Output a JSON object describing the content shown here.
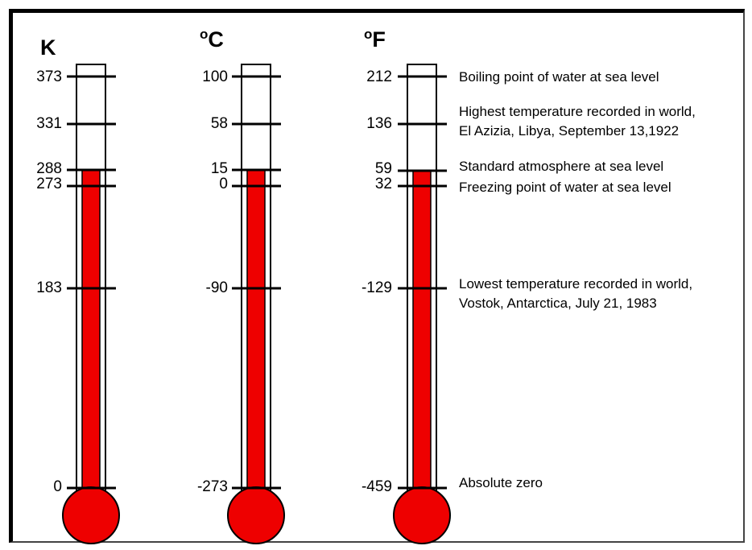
{
  "columns": [
    {
      "id": "kelvin",
      "unit_sup": "",
      "unit_main": "K",
      "ticks": [
        "373",
        "331",
        "288",
        "273",
        "183",
        "0"
      ]
    },
    {
      "id": "celsius",
      "unit_sup": "o",
      "unit_main": "C",
      "ticks": [
        "100",
        "58",
        "15",
        "0",
        "-90",
        "-273"
      ]
    },
    {
      "id": "fahrenheit",
      "unit_sup": "o",
      "unit_main": "F",
      "ticks": [
        "212",
        "136",
        "59",
        "32",
        "-129",
        "-459"
      ]
    }
  ],
  "descriptions": [
    [
      "Boiling point of water at sea level"
    ],
    [
      "Highest temperature recorded in world,",
      "El Azizia,  Libya, September 13,1922"
    ],
    [
      "Standard atmosphere at sea level"
    ],
    [
      "Freezing point of water at sea level"
    ],
    [
      "Lowest temperature recorded in world,",
      "Vostok, Antarctica, July 21, 1983"
    ],
    [
      "Absolute zero"
    ]
  ],
  "chart_data": {
    "type": "thermometer-comparison",
    "scales": [
      "K",
      "°C",
      "°F"
    ],
    "reference_points": [
      {
        "label": "Boiling point of water at sea level",
        "K": 373,
        "C": 100,
        "F": 212
      },
      {
        "label": "Highest temperature recorded in world, El Azizia, Libya, September 13,1922",
        "K": 331,
        "C": 58,
        "F": 136
      },
      {
        "label": "Standard atmosphere at sea level",
        "K": 288,
        "C": 15,
        "F": 59
      },
      {
        "label": "Freezing point of water at sea level",
        "K": 273,
        "C": 0,
        "F": 32
      },
      {
        "label": "Lowest temperature recorded in world, Vostok, Antarctica, July 21, 1983",
        "K": 183,
        "C": -90,
        "F": -129
      },
      {
        "label": "Absolute zero",
        "K": 0,
        "C": -273,
        "F": -459
      }
    ],
    "fill_level": {
      "K": 288,
      "C": 15,
      "F": 59
    },
    "colors": {
      "fill": "#ee0000",
      "tube": "#ffffff",
      "outline": "#000000"
    }
  }
}
